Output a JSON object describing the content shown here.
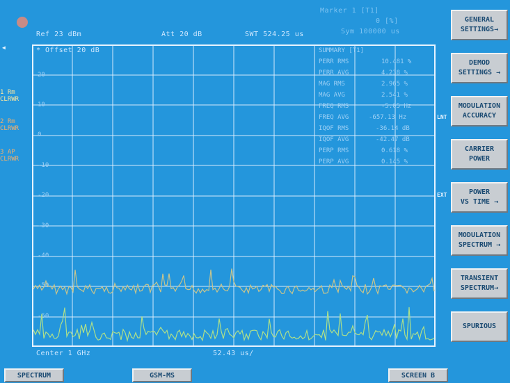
{
  "header": {
    "marker_label": "Marker 1 [T1]",
    "marker_value": "0 [%]",
    "marker_position": "Sym 100000 us",
    "ref": "Ref  23 dBm",
    "att": "Att  20 dB",
    "swt": "SWT 524.25 us",
    "offset": "* Offset  20 dB"
  },
  "left_labels": [
    {
      "text": "1 Rm\nCLRWR",
      "tone": "yellow"
    },
    {
      "text": "2 Rm\nCLRWR",
      "tone": "orange"
    },
    {
      "text": "3 AP\nCLRWR",
      "tone": "orange"
    }
  ],
  "y_ticks": [
    "20",
    "10",
    "0",
    "-10",
    "-20",
    "-30",
    "-40",
    "-50",
    "-60"
  ],
  "results": {
    "title": "SUMMARY [T1]",
    "rows": [
      {
        "label": "PERR RMS",
        "value": "10.481 %"
      },
      {
        "label": "PERR AVG",
        "value": "4.238 %"
      },
      {
        "label": "MAG RMS",
        "value": "2.965 %"
      },
      {
        "label": "MAG AVG",
        "value": "2.541 %"
      },
      {
        "label": "FREQ RMS",
        "value": "-5.05 Hz"
      },
      {
        "label": "FREQ AVG",
        "value": "-657.13 Hz"
      },
      {
        "label": "IQOF RMS",
        "value": "-36.14 dB"
      },
      {
        "label": "IQOF AVG",
        "value": "-42.47 dB"
      },
      {
        "label": "PERP RMS",
        "value": "0.618 %"
      },
      {
        "label": "PERP AVG",
        "value": "0.145 %"
      }
    ]
  },
  "footer": {
    "center": "Center 1 GHz",
    "span": "52.43 us/"
  },
  "side_tags": {
    "lnt": "LNT",
    "ext": "EXT"
  },
  "softkeys": [
    {
      "line1": "GENERAL",
      "line2": "SETTINGS→"
    },
    {
      "line1": "DEMOD",
      "line2": "SETTINGS →"
    },
    {
      "line1": "MODULATION",
      "line2": "ACCURACY"
    },
    {
      "line1": "CARRIER",
      "line2": "POWER"
    },
    {
      "line1": "POWER",
      "line2": "VS TIME →"
    },
    {
      "line1": "MODULATION",
      "line2": "SPECTRUM →"
    },
    {
      "line1": "TRANSIENT",
      "line2": "SPECTRUM→"
    },
    {
      "line1": "SPURIOUS",
      "line2": ""
    }
  ],
  "bottom_buttons": {
    "spectrum": "SPECTRUM",
    "gsm": "GSM-MS",
    "screen": "SCREEN B"
  },
  "colors": {
    "background": "#2496dc",
    "grid": "#e6f3ff",
    "trace_1": "#c9c58c",
    "trace_2": "#aee08a",
    "softkey": "#c8cdd2"
  }
}
